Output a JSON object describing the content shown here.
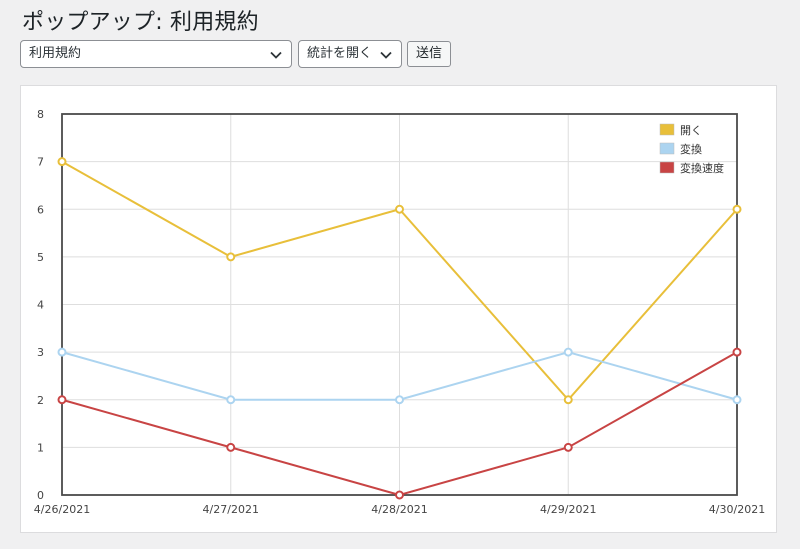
{
  "page": {
    "title": "ポップアップ: 利用規約"
  },
  "controls": {
    "page_select_value": "利用規約",
    "stat_select_value": "統計を開く",
    "submit_label": "送信"
  },
  "chart_data": {
    "type": "line",
    "x": [
      "4/26/2021",
      "4/27/2021",
      "4/28/2021",
      "4/29/2021",
      "4/30/2021"
    ],
    "ylim": [
      0,
      8
    ],
    "yticks": [
      0,
      1,
      2,
      3,
      4,
      5,
      6,
      7,
      8
    ],
    "grid": true,
    "legend_position": "top-right",
    "series": [
      {
        "name": "開く",
        "color": "#e8bf3a",
        "values": [
          7,
          5,
          6,
          2,
          6
        ]
      },
      {
        "name": "変換",
        "color": "#acd4f0",
        "values": [
          3,
          2,
          2,
          3,
          2
        ]
      },
      {
        "name": "変換速度",
        "color": "#c84444",
        "values": [
          2,
          1,
          0,
          1,
          3
        ]
      }
    ]
  }
}
